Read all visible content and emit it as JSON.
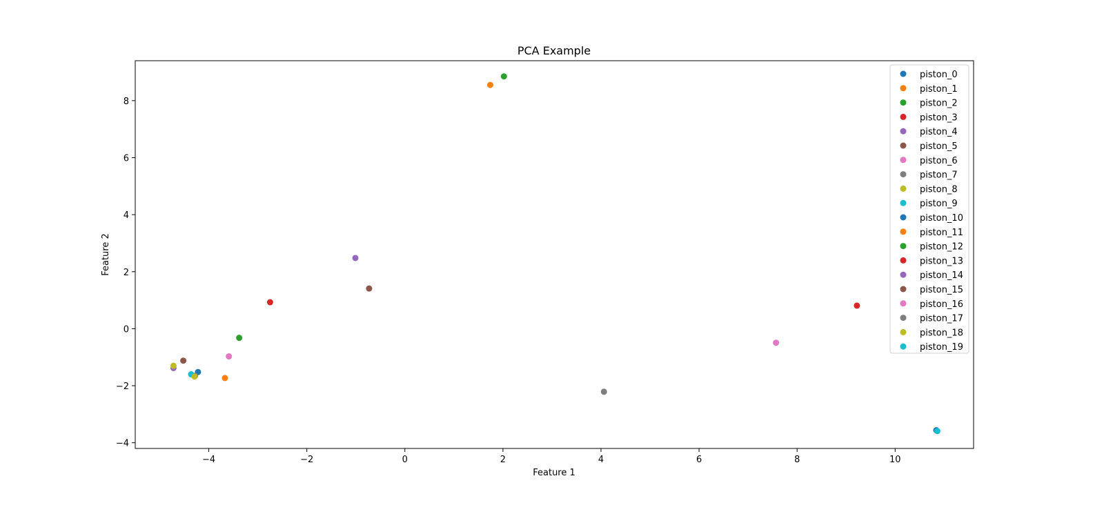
{
  "chart_data": {
    "type": "scatter",
    "title": "PCA Example",
    "xlabel": "Feature 1",
    "ylabel": "Feature 2",
    "xlim": [
      -5.5,
      11.6
    ],
    "ylim": [
      -4.2,
      9.4
    ],
    "xticks": [
      -4,
      -2,
      0,
      2,
      4,
      6,
      8,
      10
    ],
    "yticks": [
      -4,
      -2,
      0,
      2,
      4,
      6,
      8
    ],
    "xtick_labels": [
      "−4",
      "−2",
      "0",
      "2",
      "4",
      "6",
      "8",
      "10"
    ],
    "ytick_labels": [
      "−4",
      "−2",
      "0",
      "2",
      "4",
      "6",
      "8"
    ],
    "grid": false,
    "legend_position": "top-right",
    "series": [
      {
        "name": "piston_0",
        "color": "#1f77b4",
        "x": -4.22,
        "y": -1.52
      },
      {
        "name": "piston_1",
        "color": "#ff7f0e",
        "x": -3.67,
        "y": -1.73
      },
      {
        "name": "piston_2",
        "color": "#2ca02c",
        "x": -3.38,
        "y": -0.32
      },
      {
        "name": "piston_3",
        "color": "#d62728",
        "x": -2.75,
        "y": 0.93
      },
      {
        "name": "piston_4",
        "color": "#9467bd",
        "x": -4.72,
        "y": -1.38
      },
      {
        "name": "piston_5",
        "color": "#8c564b",
        "x": -4.52,
        "y": -1.12
      },
      {
        "name": "piston_6",
        "color": "#e377c2",
        "x": -3.59,
        "y": -0.97
      },
      {
        "name": "piston_7",
        "color": "#7f7f7f",
        "x": -4.28,
        "y": -1.65
      },
      {
        "name": "piston_8",
        "color": "#bcbd22",
        "x": -4.72,
        "y": -1.3
      },
      {
        "name": "piston_9",
        "color": "#17becf",
        "x": -4.36,
        "y": -1.6
      },
      {
        "name": "piston_10",
        "color": "#1f77b4",
        "x": 10.84,
        "y": -3.56
      },
      {
        "name": "piston_11",
        "color": "#ff7f0e",
        "x": 1.74,
        "y": 8.55
      },
      {
        "name": "piston_12",
        "color": "#2ca02c",
        "x": 2.02,
        "y": 8.85
      },
      {
        "name": "piston_13",
        "color": "#d62728",
        "x": 9.22,
        "y": 0.81
      },
      {
        "name": "piston_14",
        "color": "#9467bd",
        "x": -1.01,
        "y": 2.48
      },
      {
        "name": "piston_15",
        "color": "#8c564b",
        "x": -0.73,
        "y": 1.41
      },
      {
        "name": "piston_16",
        "color": "#e377c2",
        "x": 7.57,
        "y": -0.49
      },
      {
        "name": "piston_17",
        "color": "#7f7f7f",
        "x": 4.06,
        "y": -2.21
      },
      {
        "name": "piston_18",
        "color": "#bcbd22",
        "x": -4.29,
        "y": -1.68
      },
      {
        "name": "piston_19",
        "color": "#17becf",
        "x": 10.86,
        "y": -3.59
      }
    ]
  }
}
